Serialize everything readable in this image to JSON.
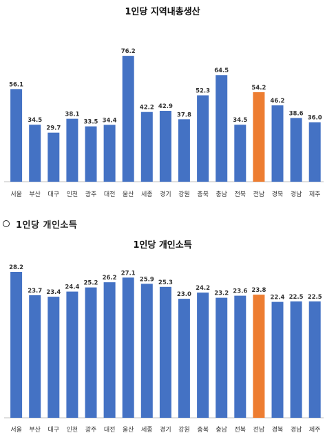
{
  "section_heading": {
    "bullet": "○",
    "text": "1인당 개인소득"
  },
  "colors": {
    "default_bar": "#4472C4",
    "highlight_bar": "#ED7D31",
    "axis": "#bfbfbf"
  },
  "chart_data": [
    {
      "type": "bar",
      "title": "1인당 지역내총생산",
      "categories": [
        "서울",
        "부산",
        "대구",
        "인천",
        "광주",
        "대전",
        "울산",
        "세종",
        "경기",
        "강원",
        "충북",
        "충남",
        "전북",
        "전남",
        "경북",
        "경남",
        "제주"
      ],
      "values": [
        56.1,
        34.5,
        29.7,
        38.1,
        33.5,
        34.4,
        76.2,
        42.2,
        42.9,
        37.8,
        52.3,
        64.5,
        34.5,
        54.2,
        46.2,
        38.6,
        36.0
      ],
      "value_labels": [
        "56.1",
        "34.5",
        "29.7",
        "38.1",
        "33.5",
        "34.4",
        "76.2",
        "42.2",
        "42.9",
        "37.8",
        "52.3",
        "64.5",
        "34.5",
        "54.2",
        "46.2",
        "38.6",
        "36.0"
      ],
      "highlight_category": "전남",
      "ylim": [
        0,
        85
      ],
      "grid": false,
      "xlabel": "",
      "ylabel": ""
    },
    {
      "type": "bar",
      "title": "1인당 개인소득",
      "categories": [
        "서울",
        "부산",
        "대구",
        "인천",
        "광주",
        "대전",
        "울산",
        "세종",
        "경기",
        "강원",
        "충북",
        "충남",
        "전북",
        "전남",
        "경북",
        "경남",
        "제주"
      ],
      "values": [
        28.2,
        23.7,
        23.4,
        24.4,
        25.2,
        26.2,
        27.1,
        25.9,
        25.3,
        23.0,
        24.2,
        23.2,
        23.6,
        23.8,
        22.4,
        22.5,
        22.5
      ],
      "value_labels": [
        "28.2",
        "23.7",
        "23.4",
        "24.4",
        "25.2",
        "26.2",
        "27.1",
        "25.9",
        "25.3",
        "23.0",
        "24.2",
        "23.2",
        "23.6",
        "23.8",
        "22.4",
        "22.5",
        "22.5"
      ],
      "highlight_category": "전남",
      "ylim": [
        0,
        31
      ],
      "grid": false,
      "xlabel": "",
      "ylabel": ""
    }
  ]
}
